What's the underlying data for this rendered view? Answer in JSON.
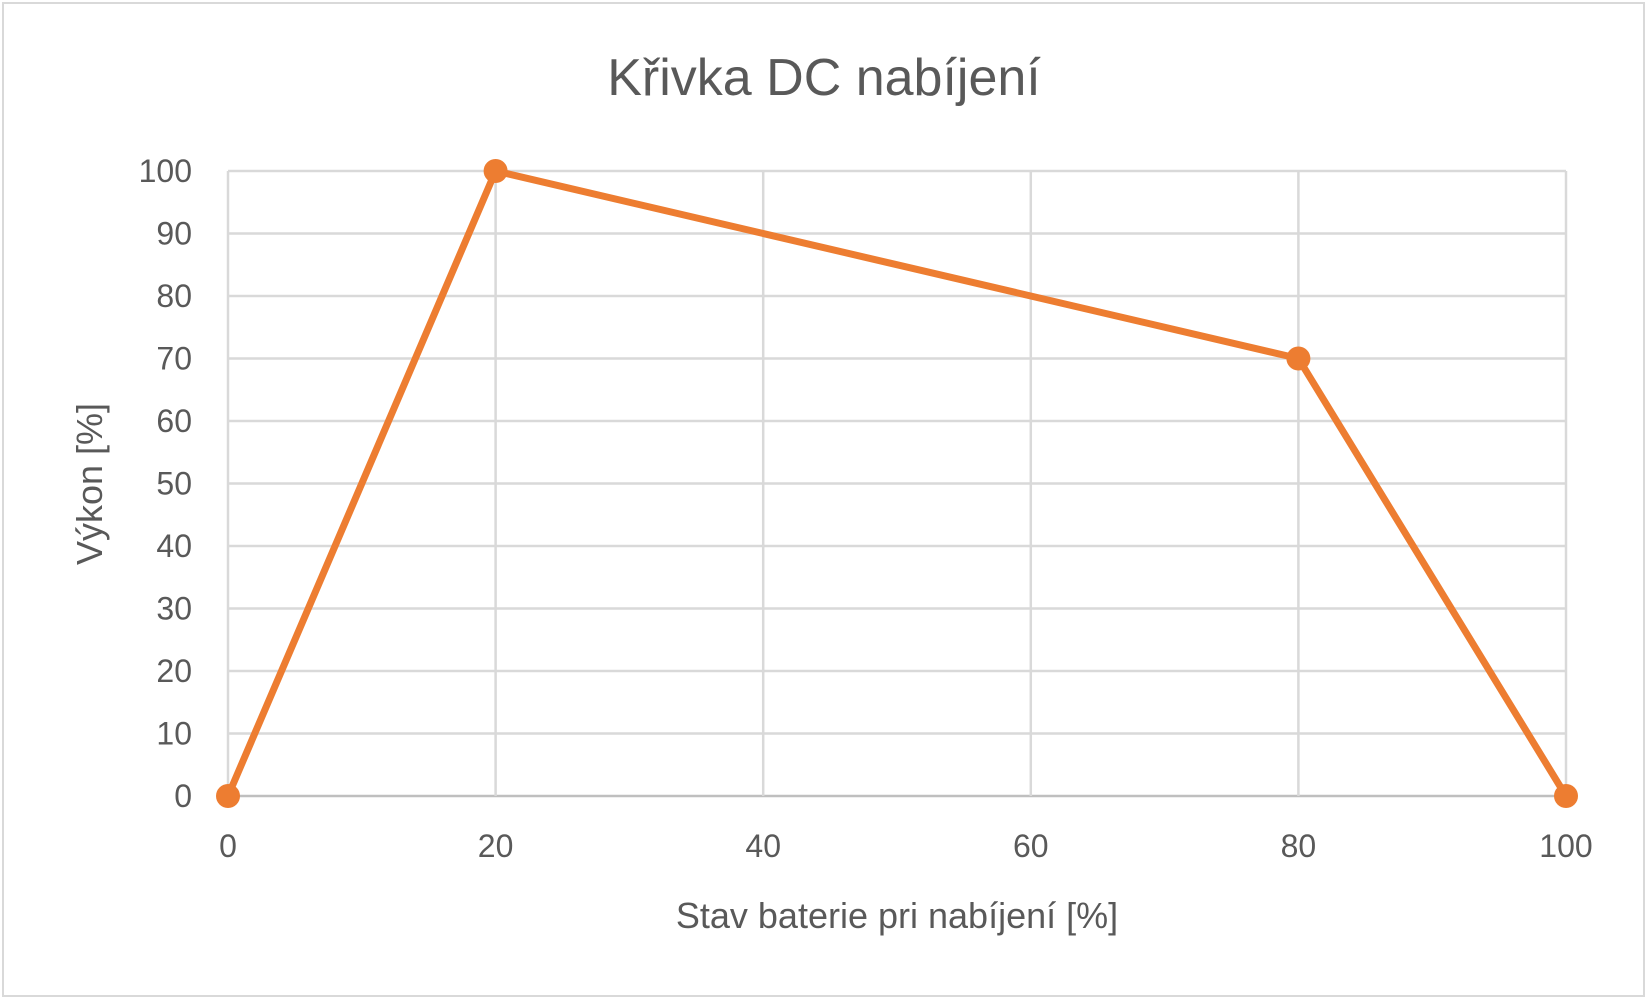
{
  "chart_data": {
    "type": "line",
    "title": "Křivka DC nabíjení",
    "xlabel": "Stav baterie pri nabíjení [%]",
    "ylabel": "Výkon [%]",
    "xlim": [
      0,
      100
    ],
    "ylim": [
      0,
      100
    ],
    "x_ticks": [
      "0",
      "20",
      "40",
      "60",
      "80",
      "100"
    ],
    "y_ticks": [
      "0",
      "10",
      "20",
      "30",
      "40",
      "50",
      "60",
      "70",
      "80",
      "90",
      "100"
    ],
    "grid": true,
    "legend": "none",
    "series": [
      {
        "color": "#ed7d31",
        "x": [
          0,
          20,
          80,
          100
        ],
        "y": [
          0,
          100,
          70,
          0
        ]
      }
    ]
  }
}
